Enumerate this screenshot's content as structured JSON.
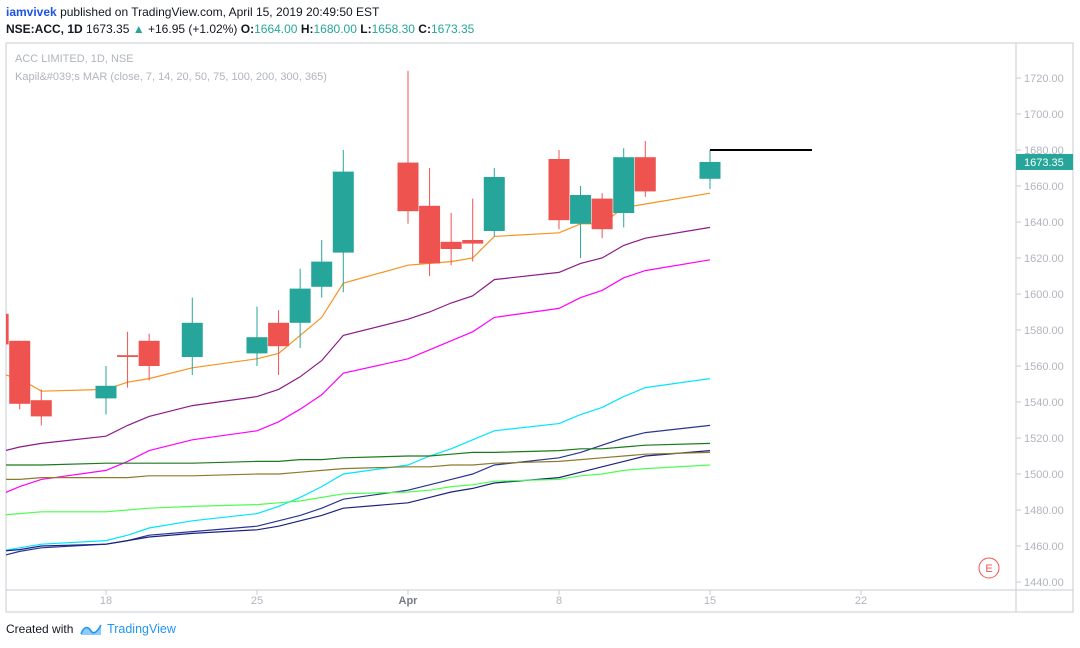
{
  "header": {
    "author": "iamvivek",
    "published_text": "published on TradingView.com, April 15, 2019 20:49:50 EST",
    "symbol": "NSE:ACC, 1D",
    "last": "1673.35",
    "arrow": "▲",
    "change": "+16.95 (+1.02%)",
    "o_label": "O:",
    "o_value": "1664.00",
    "h_label": "H:",
    "h_value": "1680.00",
    "l_label": "L:",
    "l_value": "1658.30",
    "c_label": "C:",
    "c_value": "1673.35"
  },
  "legend": {
    "line1": "ACC LIMITED, 1D, NSE",
    "line2": "Kapil&#039;s MAR (close, 7, 14, 20, 50, 75, 100, 200, 300, 365)"
  },
  "footer": {
    "created_with": "Created with",
    "brand": "TradingView"
  },
  "colors": {
    "up": "#26a69a",
    "down": "#ef5350",
    "price_tag": "#26a69a"
  },
  "chart_data": {
    "type": "candlestick",
    "y_range": [
      1440,
      1730
    ],
    "y_ticks": [
      1440,
      1460,
      1480,
      1500,
      1520,
      1540,
      1560,
      1580,
      1600,
      1620,
      1640,
      1660,
      1680,
      1700,
      1720
    ],
    "y_tick_labels": [
      "1440.00",
      "1460.00",
      "1480.00",
      "1500.00",
      "1520.00",
      "1540.00",
      "1560.00",
      "1580.00",
      "1600.00",
      "1620.00",
      "1640.00",
      "1660.00",
      "1680.00",
      "1700.00",
      "1720.00"
    ],
    "x_ticks": [
      {
        "label": "18",
        "date": "2019-03-18"
      },
      {
        "label": "25",
        "date": "2019-03-25"
      },
      {
        "label": "Apr",
        "date": "2019-04-01"
      },
      {
        "label": "8",
        "date": "2019-04-08"
      },
      {
        "label": "15",
        "date": "2019-04-15"
      },
      {
        "label": "22",
        "date": "2019-04-22"
      }
    ],
    "x_tick_bold": [
      "Apr"
    ],
    "last_price_label": "1673.35",
    "level_line": 1680,
    "candles": [
      {
        "date": "2019-03-13",
        "open": 1589,
        "high": 1589,
        "low": 1572,
        "close": 1572
      },
      {
        "date": "2019-03-14",
        "open": 1574,
        "high": 1574,
        "low": 1536,
        "close": 1539
      },
      {
        "date": "2019-03-15",
        "open": 1541,
        "high": 1547,
        "low": 1527,
        "close": 1532
      },
      {
        "date": "2019-03-18",
        "open": 1542,
        "high": 1560,
        "low": 1533,
        "close": 1549
      },
      {
        "date": "2019-03-19",
        "open": 1566,
        "high": 1579,
        "low": 1548,
        "close": 1565
      },
      {
        "date": "2019-03-20",
        "open": 1574,
        "high": 1578,
        "low": 1552,
        "close": 1560
      },
      {
        "date": "2019-03-22",
        "open": 1565,
        "high": 1598,
        "low": 1555,
        "close": 1584
      },
      {
        "date": "2019-03-25",
        "open": 1567,
        "high": 1593,
        "low": 1560,
        "close": 1576
      },
      {
        "date": "2019-03-26",
        "open": 1584,
        "high": 1591,
        "low": 1555,
        "close": 1571
      },
      {
        "date": "2019-03-27",
        "open": 1584,
        "high": 1614,
        "low": 1570,
        "close": 1603
      },
      {
        "date": "2019-03-28",
        "open": 1604,
        "high": 1630,
        "low": 1598,
        "close": 1618
      },
      {
        "date": "2019-03-29",
        "open": 1623,
        "high": 1680,
        "low": 1601,
        "close": 1668
      },
      {
        "date": "2019-04-01",
        "open": 1673,
        "high": 1724,
        "low": 1639,
        "close": 1646
      },
      {
        "date": "2019-04-02",
        "open": 1649,
        "high": 1670,
        "low": 1610,
        "close": 1617
      },
      {
        "date": "2019-04-03",
        "open": 1629,
        "high": 1645,
        "low": 1616,
        "close": 1625
      },
      {
        "date": "2019-04-04",
        "open": 1630,
        "high": 1653,
        "low": 1618,
        "close": 1628
      },
      {
        "date": "2019-04-05",
        "open": 1635,
        "high": 1670,
        "low": 1632,
        "close": 1665
      },
      {
        "date": "2019-04-08",
        "open": 1675,
        "high": 1680,
        "low": 1636,
        "close": 1641
      },
      {
        "date": "2019-04-09",
        "open": 1639,
        "high": 1660,
        "low": 1620,
        "close": 1655
      },
      {
        "date": "2019-04-10",
        "open": 1653,
        "high": 1656,
        "low": 1631,
        "close": 1636
      },
      {
        "date": "2019-04-11",
        "open": 1645,
        "high": 1681,
        "low": 1637,
        "close": 1676
      },
      {
        "date": "2019-04-12",
        "open": 1676,
        "high": 1685,
        "low": 1654,
        "close": 1657
      },
      {
        "date": "2019-04-15",
        "open": 1664,
        "high": 1680,
        "low": 1658.3,
        "close": 1673.35
      }
    ],
    "ma_series": [
      {
        "color": "#f7931e",
        "values": [
          1556,
          1553,
          1546,
          1547,
          1551,
          1553,
          1559,
          1564,
          1567,
          1577,
          1587,
          1606,
          1616,
          1617,
          1618,
          1620,
          1632,
          1634,
          1639,
          1639,
          1648,
          1650,
          1656
        ]
      },
      {
        "color": "#8b1a89",
        "values": [
          1512,
          1515,
          1517,
          1521,
          1527,
          1532,
          1538,
          1543,
          1547,
          1554,
          1563,
          1577,
          1586,
          1590,
          1595,
          1599,
          1608,
          1612,
          1617,
          1620,
          1627,
          1631,
          1637
        ]
      },
      {
        "color": "#ff00ff",
        "values": [
          1488,
          1493,
          1497,
          1502,
          1507,
          1513,
          1519,
          1524,
          1529,
          1536,
          1544,
          1556,
          1564,
          1569,
          1574,
          1579,
          1587,
          1592,
          1598,
          1602,
          1609,
          1613,
          1619
        ]
      },
      {
        "color": "#00e5ff",
        "values": [
          1457,
          1459,
          1461,
          1463,
          1466,
          1470,
          1474,
          1478,
          1482,
          1487,
          1493,
          1500,
          1505,
          1510,
          1514,
          1519,
          1524,
          1528,
          1533,
          1537,
          1543,
          1548,
          1553
        ]
      },
      {
        "color": "#283593",
        "values": [
          1454,
          1457,
          1459,
          1461,
          1463,
          1466,
          1468,
          1471,
          1474,
          1477,
          1481,
          1486,
          1491,
          1494,
          1497,
          1500,
          1505,
          1509,
          1512,
          1516,
          1520,
          1523,
          1527
        ]
      },
      {
        "color": "#1a237e",
        "values": [
          1457,
          1458,
          1460,
          1461,
          1463,
          1465,
          1467,
          1469,
          1471,
          1474,
          1477,
          1481,
          1484,
          1487,
          1490,
          1492,
          1495,
          1498,
          1501,
          1504,
          1507,
          1510,
          1513
        ]
      },
      {
        "color": "#1b7a1b",
        "values": [
          1505,
          1505,
          1505,
          1506,
          1506,
          1506,
          1506,
          1507,
          1507,
          1508,
          1508,
          1509,
          1510,
          1510,
          1511,
          1512,
          1512,
          1513,
          1514,
          1514,
          1515,
          1516,
          1517
        ]
      },
      {
        "color": "#8d7a2a",
        "values": [
          1497,
          1497,
          1498,
          1498,
          1498,
          1499,
          1499,
          1500,
          1500,
          1501,
          1502,
          1503,
          1504,
          1504,
          1505,
          1505,
          1506,
          1507,
          1508,
          1509,
          1510,
          1511,
          1512
        ]
      },
      {
        "color": "#4cff4c",
        "values": [
          1477,
          1478,
          1479,
          1479,
          1480,
          1481,
          1482,
          1483,
          1484,
          1485,
          1487,
          1489,
          1490,
          1491,
          1493,
          1494,
          1496,
          1497,
          1499,
          1500,
          1502,
          1503,
          1505
        ]
      }
    ]
  }
}
